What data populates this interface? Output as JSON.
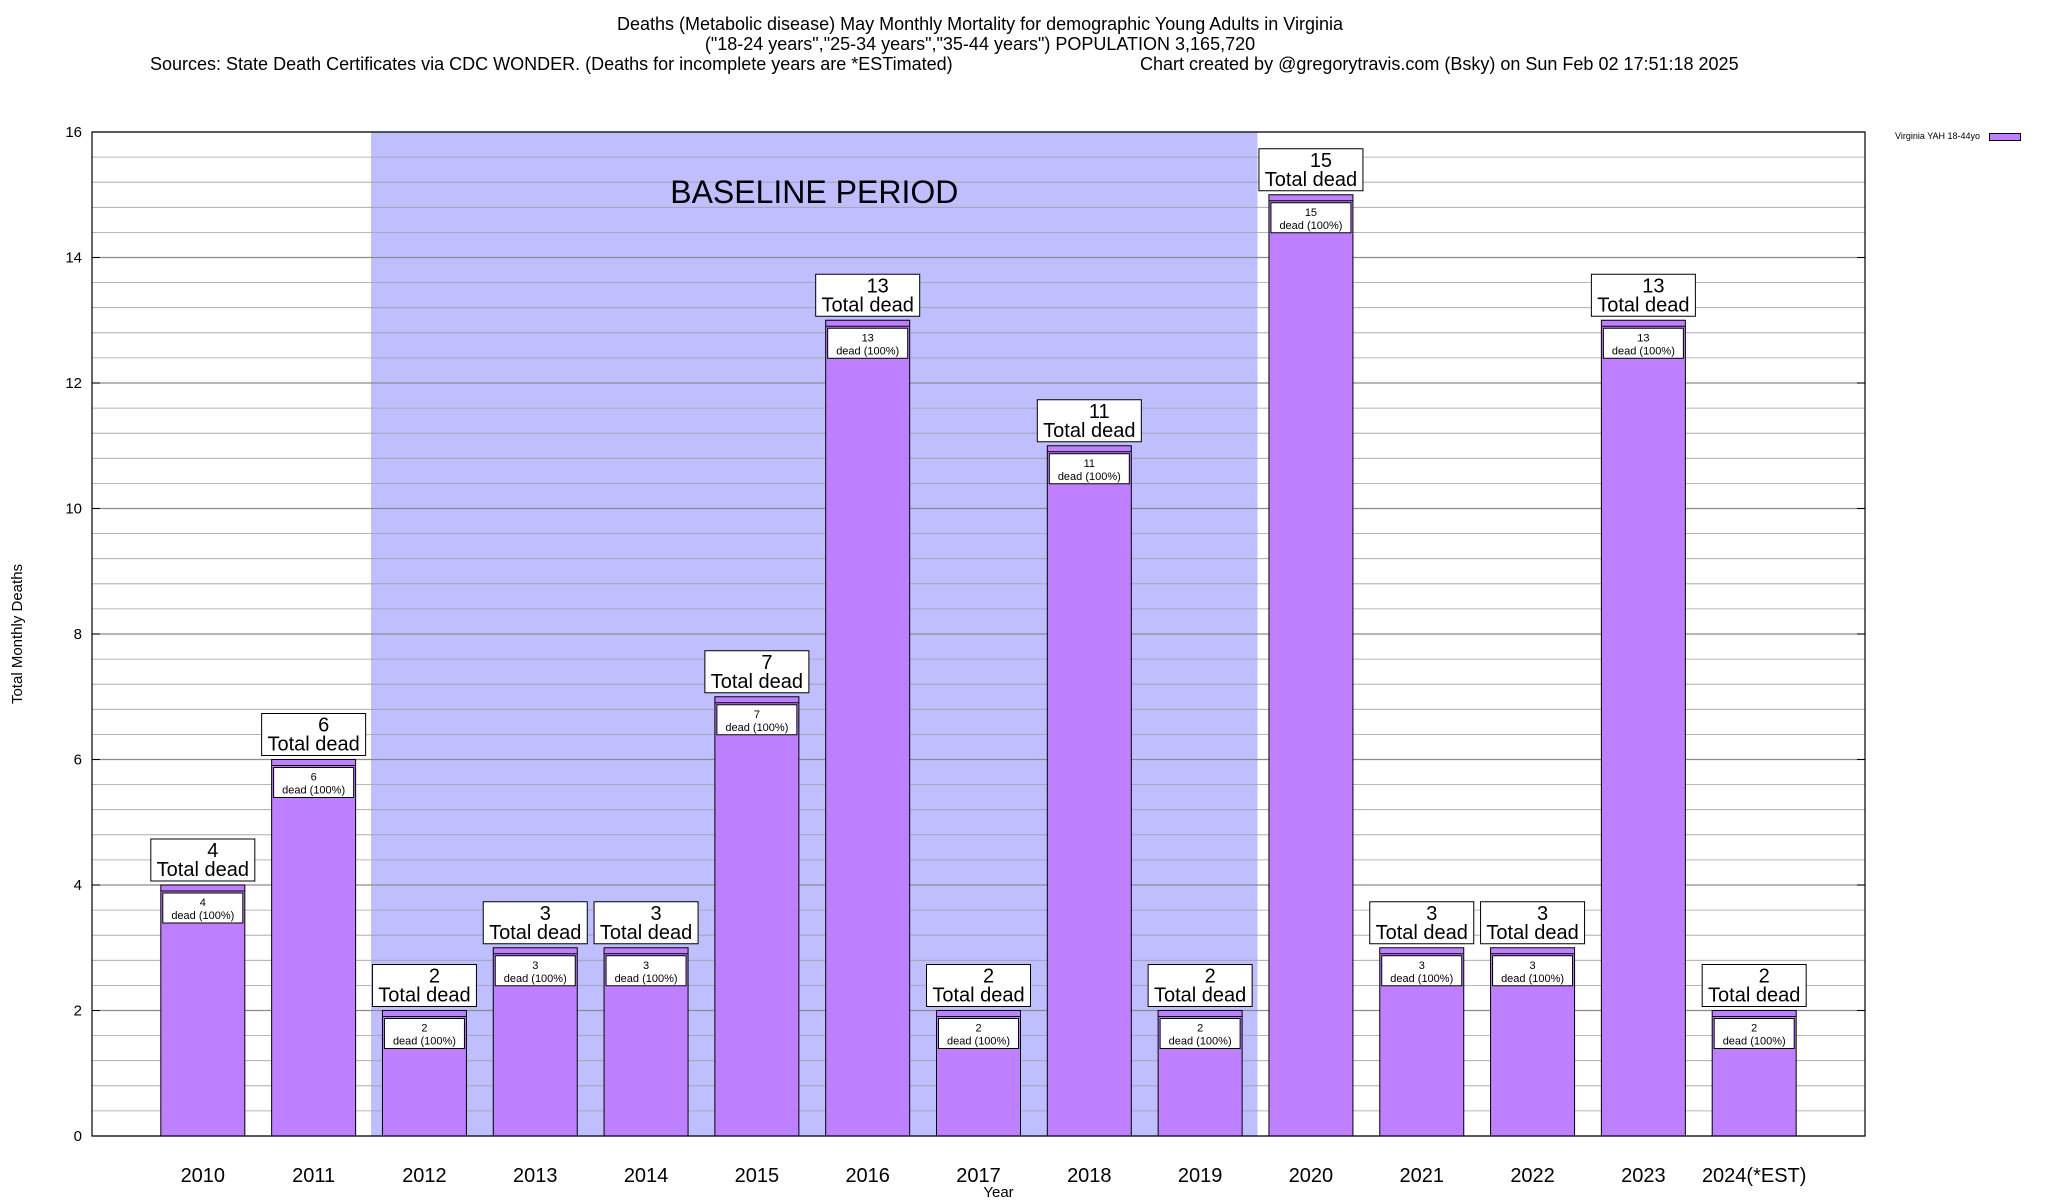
{
  "header": {
    "title_line1": "Deaths (Metabolic disease) May Monthly Mortality for demographic Young Adults in Virginia",
    "title_line2": "(\"18-24 years\",\"25-34 years\",\"35-44 years\") POPULATION 3,165,720",
    "sources": "Sources: State Death Certificates via CDC WONDER. (Deaths for incomplete years are *ESTimated)",
    "credit": "Chart created by @gregorytravis.com (Bsky) on Sun Feb 02 17:51:18 2025"
  },
  "colors": {
    "bar": "#bf80ff",
    "baseline_band": "#bfbfff",
    "grid": "#a0a0a0"
  },
  "chart_data": {
    "type": "bar",
    "categories": [
      "2010",
      "2011",
      "2012",
      "2013",
      "2014",
      "2015",
      "2016",
      "2017",
      "2018",
      "2019",
      "2020",
      "2021",
      "2022",
      "2023",
      "2024(*EST)"
    ],
    "series": [
      {
        "name": "Virginia YAH 18-44yo",
        "values": [
          4,
          6,
          2,
          3,
          3,
          7,
          13,
          2,
          11,
          2,
          15,
          3,
          3,
          13,
          2
        ]
      }
    ],
    "bar_labels": {
      "total_suffix": "Total dead",
      "inner_suffix": "dead (100%)"
    },
    "baseline": {
      "label": "BASELINE PERIOD",
      "from": "2012",
      "to": "2019"
    },
    "xlabel": "Year",
    "ylabel": "Total Monthly Deaths",
    "ylim": [
      0,
      16
    ],
    "yticks": [
      0,
      2,
      4,
      6,
      8,
      10,
      12,
      14,
      16
    ],
    "grid": true,
    "legend_position": "top-right"
  }
}
